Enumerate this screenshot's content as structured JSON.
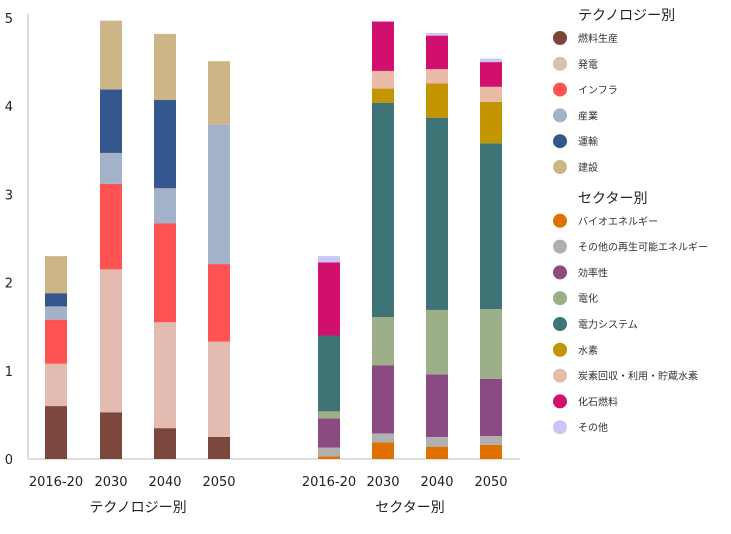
{
  "chart_data": {
    "type": "bar",
    "stacked": true,
    "ylim": [
      0,
      5
    ],
    "yticks": [
      0,
      1,
      2,
      3,
      4,
      5
    ],
    "categories": [
      "2016-20",
      "2030",
      "2040",
      "2050"
    ],
    "groups": [
      {
        "label": "テクノロジー別",
        "series": [
          {
            "name": "燃料生産",
            "color": "#7b473d",
            "values": [
              0.6,
              0.53,
              0.35,
              0.25
            ]
          },
          {
            "name": "発電",
            "color": "#e2bcb1",
            "values": [
              0.48,
              1.62,
              1.2,
              1.08
            ]
          },
          {
            "name": "インフラ",
            "color": "#ff5252",
            "values": [
              0.5,
              0.97,
              1.12,
              0.88
            ]
          },
          {
            "name": "産業",
            "color": "#a3b2c8",
            "values": [
              0.15,
              0.35,
              0.4,
              1.58
            ]
          },
          {
            "name": "運輸",
            "color": "#34578f",
            "values": [
              0.15,
              0.72,
              1.0,
              0.0
            ]
          },
          {
            "name": "建設",
            "color": "#ccb688",
            "values": [
              0.42,
              0.78,
              0.75,
              0.72
            ]
          }
        ]
      },
      {
        "label": "セクター別",
        "series": [
          {
            "name": "バイオエネルギー",
            "color": "#e07000",
            "values": [
              0.03,
              0.19,
              0.14,
              0.16
            ]
          },
          {
            "name": "その他の再生可能エネルギー",
            "color": "#b0b0b0",
            "values": [
              0.1,
              0.1,
              0.11,
              0.1
            ]
          },
          {
            "name": "効率性",
            "color": "#8c4a82",
            "values": [
              0.33,
              0.77,
              0.71,
              0.65
            ]
          },
          {
            "name": "電化",
            "color": "#9caf88",
            "values": [
              0.08,
              0.55,
              0.73,
              0.79
            ]
          },
          {
            "name": "電力システム",
            "color": "#3e7476",
            "values": [
              0.86,
              2.43,
              2.18,
              1.88
            ]
          },
          {
            "name": "水素",
            "color": "#c39500",
            "values": [
              0.0,
              0.16,
              0.39,
              0.47
            ]
          },
          {
            "name": "炭素回収・利用・貯蔵水素",
            "color": "#e9bba8",
            "values": [
              0.0,
              0.2,
              0.16,
              0.17
            ]
          },
          {
            "name": "化石燃料",
            "color": "#d10f6c",
            "values": [
              0.83,
              0.56,
              0.38,
              0.28
            ]
          },
          {
            "name": "その他",
            "color": "#c9c6f8",
            "values": [
              0.07,
              0.0,
              0.03,
              0.04
            ]
          }
        ]
      }
    ],
    "legend": [
      {
        "title": "テクノロジー別",
        "group": 0
      },
      {
        "title": "セクター別",
        "group": 1
      }
    ],
    "legend_placement": "right",
    "grid": false
  }
}
